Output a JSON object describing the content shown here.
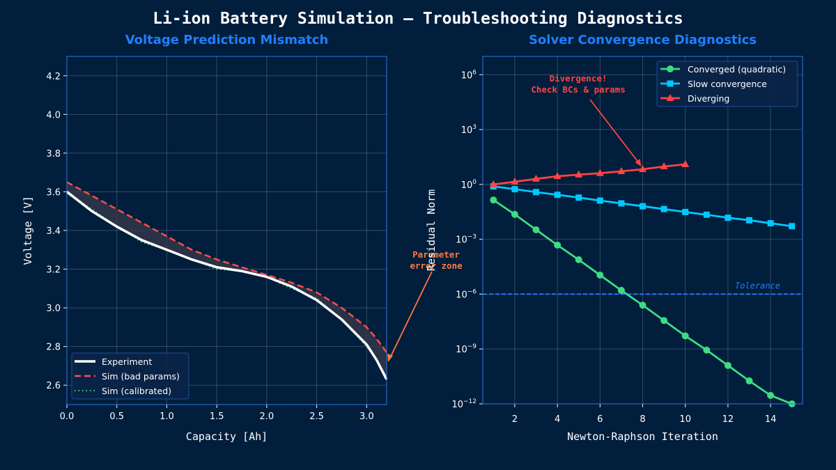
{
  "figure_title": "Li-ion Battery Simulation — Troubleshooting Diagnostics",
  "colors": {
    "background": "#011e3c",
    "title_blue": "#1f7fff",
    "axis_blue": "#2a78e0",
    "experiment": "#ffffff",
    "bad": "#ff4d4d",
    "calibrated": "#3ddc84",
    "converged": "#3ddc84",
    "slow": "#00c8ff",
    "diverging": "#ff4444",
    "annotation_orange": "#ff7a3d",
    "tolerance": "#1f7fff"
  },
  "chart_data": [
    {
      "type": "line",
      "title": "Voltage Prediction Mismatch",
      "xlabel": "Capacity [Ah]",
      "ylabel": "Voltage [V]",
      "xlim": [
        0,
        3.2
      ],
      "ylim": [
        2.5,
        4.3
      ],
      "xticks": [
        "0.0",
        "0.5",
        "1.0",
        "1.5",
        "2.0",
        "2.5",
        "3.0"
      ],
      "yticks": [
        "2.6",
        "2.8",
        "3.0",
        "3.2",
        "3.4",
        "3.6",
        "3.8",
        "4.0",
        "4.2"
      ],
      "grid": true,
      "legend_position": "lower-left",
      "x": [
        0,
        0.25,
        0.5,
        0.75,
        1.0,
        1.25,
        1.5,
        1.75,
        2.0,
        2.25,
        2.5,
        2.75,
        3.0,
        3.1,
        3.2
      ],
      "series": [
        {
          "name": "Experiment",
          "style": "solid",
          "values": [
            3.6,
            3.5,
            3.42,
            3.35,
            3.3,
            3.25,
            3.21,
            3.19,
            3.16,
            3.11,
            3.04,
            2.94,
            2.81,
            2.73,
            2.63
          ]
        },
        {
          "name": "Sim (bad params)",
          "style": "dashed",
          "values": [
            3.65,
            3.58,
            3.51,
            3.44,
            3.37,
            3.3,
            3.25,
            3.21,
            3.17,
            3.13,
            3.08,
            3.0,
            2.9,
            2.84,
            2.77
          ]
        },
        {
          "name": "Sim (calibrated)",
          "style": "dotted",
          "values": [
            3.59,
            3.51,
            3.42,
            3.34,
            3.3,
            3.25,
            3.2,
            3.19,
            3.16,
            3.1,
            3.05,
            2.94,
            2.8,
            2.73,
            2.64
          ]
        }
      ],
      "fill_between": [
        "Experiment",
        "Sim (bad params)"
      ],
      "annotation": {
        "text": [
          "Parameter",
          "error zone"
        ],
        "points_to": [
          3.2,
          2.72
        ]
      }
    },
    {
      "type": "line",
      "title": "Solver Convergence Diagnostics",
      "xlabel": "Newton-Raphson Iteration",
      "ylabel": "Residual Norm",
      "yscale": "log",
      "xlim": [
        0.5,
        15.5
      ],
      "ylim": [
        1e-12,
        10000000.0
      ],
      "xticks": [
        "2",
        "4",
        "6",
        "8",
        "10",
        "12",
        "14"
      ],
      "yticks": [
        {
          "base": "10",
          "exp": "−12",
          "value": -12
        },
        {
          "base": "10",
          "exp": "−9",
          "value": -9
        },
        {
          "base": "10",
          "exp": "−6",
          "value": -6
        },
        {
          "base": "10",
          "exp": "−3",
          "value": -3
        },
        {
          "base": "10",
          "exp": "0",
          "value": 0
        },
        {
          "base": "10",
          "exp": "3",
          "value": 3
        },
        {
          "base": "10",
          "exp": "6",
          "value": 6
        }
      ],
      "grid": true,
      "legend_position": "upper-right",
      "series": [
        {
          "name": "Converged (quadratic)",
          "marker": "circle",
          "x": [
            1,
            2,
            3,
            4,
            5,
            6,
            7,
            8,
            9,
            10,
            11,
            12,
            13,
            14,
            15
          ],
          "values": [
            0.14,
            0.023,
            0.0033,
            0.00048,
            7.6e-05,
            1.1e-05,
            1.6e-06,
            2.5e-07,
            3.6e-08,
            5.2e-09,
            8.7e-10,
            1.26e-10,
            1.8e-11,
            2.9e-12,
            1e-12
          ]
        },
        {
          "name": "Slow convergence",
          "marker": "square",
          "x": [
            1,
            2,
            3,
            4,
            5,
            6,
            7,
            8,
            9,
            10,
            11,
            12,
            13,
            14,
            15
          ],
          "values": [
            0.78,
            0.55,
            0.38,
            0.27,
            0.19,
            0.13,
            0.092,
            0.064,
            0.045,
            0.031,
            0.022,
            0.015,
            0.011,
            0.0075,
            0.0052
          ]
        },
        {
          "name": "Diverging",
          "marker": "triangle",
          "x": [
            1,
            2,
            3,
            4,
            5,
            6,
            7,
            8,
            9,
            10
          ],
          "values": [
            1.0,
            1.4,
            2.0,
            2.8,
            3.4,
            4.1,
            5.2,
            6.7,
            9.5,
            12.5
          ]
        }
      ],
      "tolerance": {
        "value": 1e-06,
        "label": "Tolerance"
      },
      "annotation": {
        "text": [
          "Divergence!",
          "Check BCs & params"
        ],
        "points_to": [
          8,
          6.7
        ]
      }
    }
  ]
}
